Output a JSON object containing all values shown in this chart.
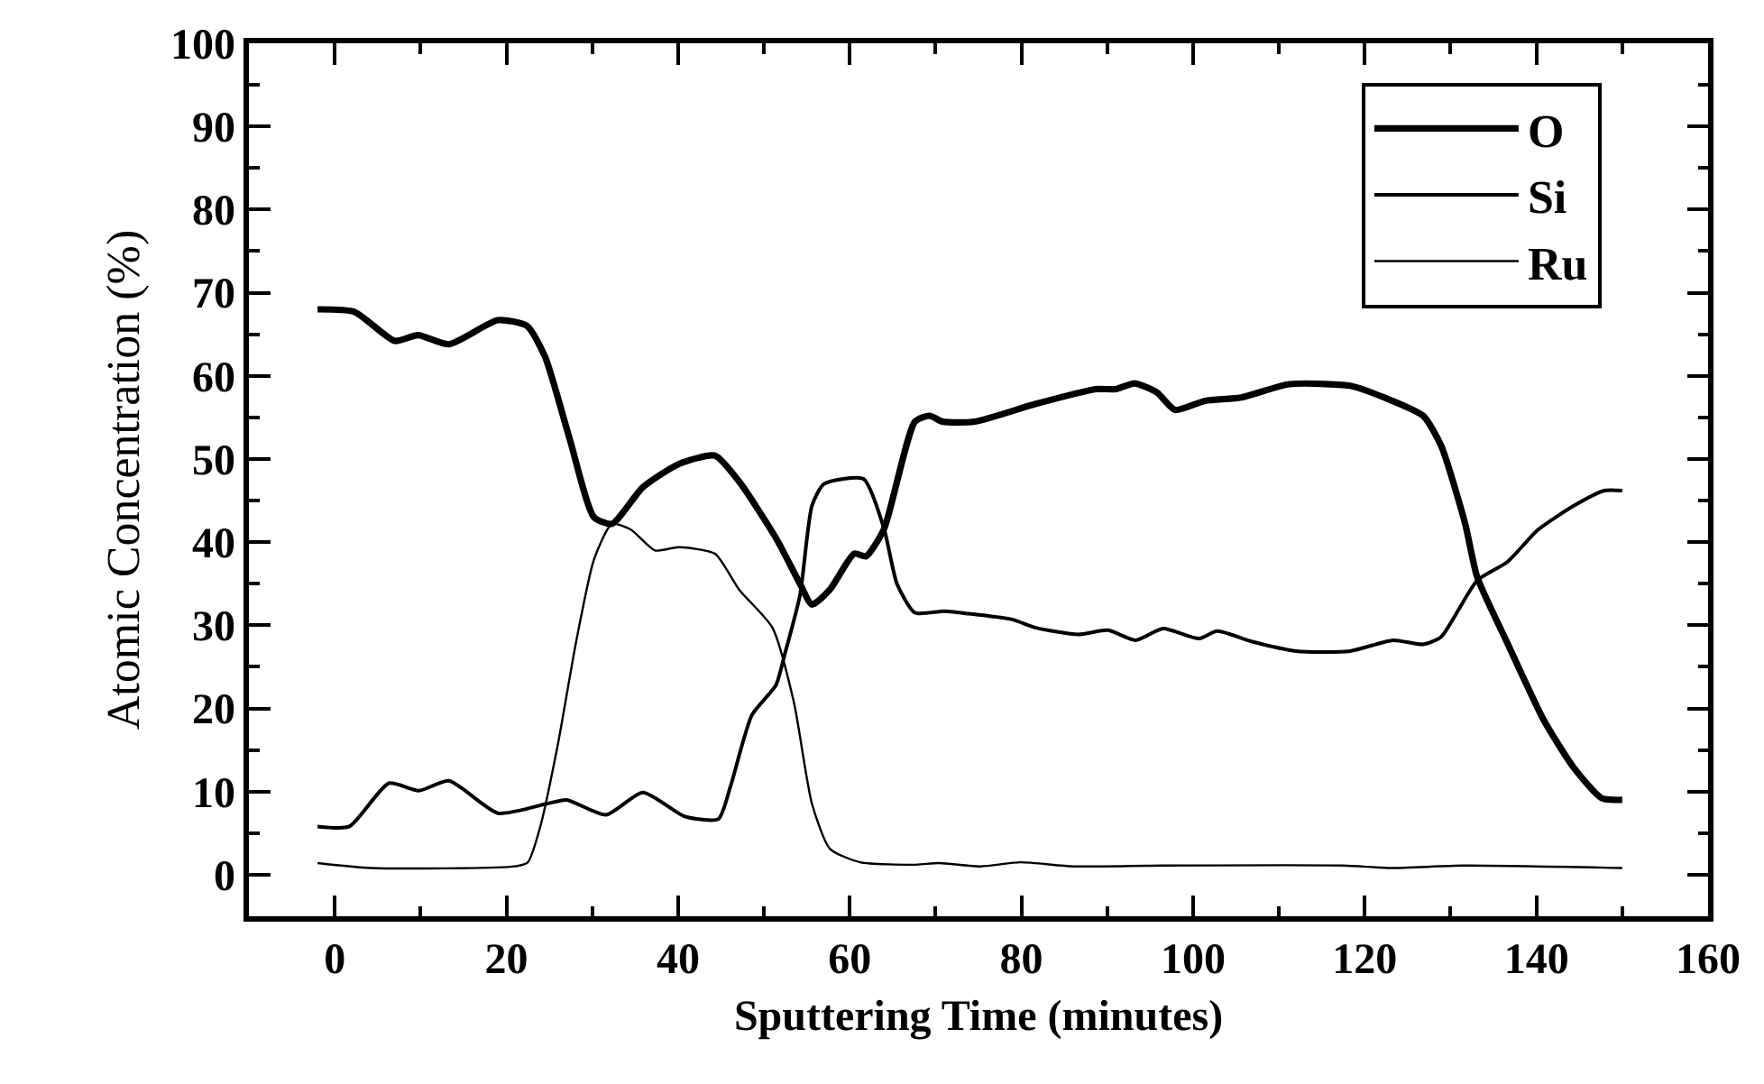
{
  "chart_data": {
    "type": "line",
    "xlabel": "Sputtering Time (minutes)",
    "ylabel": "Atomic Concentration (%)",
    "xlim": [
      -10,
      160
    ],
    "ylim": [
      -5,
      100
    ],
    "xticks": [
      {
        "value": -10,
        "label": null
      },
      0,
      {
        "value": 10,
        "label": null
      },
      20,
      {
        "value": 30,
        "label": null
      },
      40,
      {
        "value": 50,
        "label": null
      },
      60,
      {
        "value": 70,
        "label": null
      },
      80,
      {
        "value": 90,
        "label": null
      },
      100,
      {
        "value": 110,
        "label": null
      },
      120,
      {
        "value": 130,
        "label": null
      },
      140,
      {
        "value": 150,
        "label": null
      },
      160
    ],
    "yticks": [
      0,
      {
        "value": 5,
        "label": null
      },
      10,
      {
        "value": 15,
        "label": null
      },
      20,
      {
        "value": 25,
        "label": null
      },
      30,
      {
        "value": 35,
        "label": null
      },
      40,
      {
        "value": 45,
        "label": null
      },
      50,
      {
        "value": 55,
        "label": null
      },
      60,
      {
        "value": 65,
        "label": null
      },
      70,
      {
        "value": 75,
        "label": null
      },
      80,
      {
        "value": 85,
        "label": null
      },
      90,
      {
        "value": 95,
        "label": null
      },
      100
    ],
    "legend": "top right",
    "marker": "none",
    "line_style": "solid",
    "series": [
      {
        "name": "O",
        "color": "#000000",
        "x": [
          -2,
          2.3,
          7,
          9.7,
          13.3,
          19,
          22.4,
          24.5,
          27.4,
          30.2,
          32.3,
          35.9,
          40.1,
          44.3,
          47.1,
          51.4,
          54.2,
          55.6,
          57.7,
          60.5,
          61.9,
          64,
          67.6,
          69.3,
          70.8,
          74.6,
          81.6,
          88.7,
          91,
          93.2,
          95.8,
          97.9,
          101.4,
          105.6,
          111.2,
          118.3,
          122.5,
          126.8,
          128.9,
          131.7,
          133.1,
          136.6,
          140.9,
          144.4,
          147.6,
          150
        ],
        "values": [
          68,
          67.7,
          64.2,
          64.9,
          63.8,
          66.7,
          66,
          62.3,
          52.3,
          43,
          42.2,
          46.6,
          49.4,
          50.4,
          47.3,
          40.5,
          35,
          32.5,
          34.3,
          38.6,
          38.3,
          41.6,
          54.5,
          55.2,
          54.5,
          54.5,
          56.6,
          58.4,
          58.4,
          59.1,
          58,
          55.9,
          57,
          57.4,
          59,
          58.8,
          57.3,
          55.2,
          51.6,
          42.2,
          35.8,
          27.9,
          18.5,
          12.8,
          9.2,
          9
        ]
      },
      {
        "name": "Si",
        "color": "#000000",
        "x": [
          -2,
          1.7,
          6.3,
          9.8,
          13.3,
          19,
          24.6,
          27,
          31.6,
          35.9,
          40.8,
          44.7,
          46.1,
          48.6,
          51.4,
          52.4,
          54.2,
          55.6,
          57,
          61.6,
          64,
          65.5,
          67.6,
          71,
          74.6,
          78.9,
          81.7,
          86.6,
          90.1,
          93.3,
          96.5,
          100.7,
          102.8,
          107,
          112,
          118.3,
          123.3,
          126.8,
          128.9,
          133.1,
          136.6,
          140.2,
          144.4,
          147.9,
          150
        ],
        "values": [
          5.8,
          5.8,
          11,
          10.1,
          11.3,
          7.4,
          8.5,
          9,
          7.2,
          9.9,
          7,
          6.7,
          10.6,
          19.2,
          22.8,
          26.4,
          33.6,
          44.4,
          47,
          47.6,
          41.6,
          35,
          31.5,
          31.7,
          31.3,
          30.7,
          29.7,
          28.9,
          29.4,
          28.2,
          29.6,
          28.4,
          29.3,
          28,
          26.9,
          26.9,
          28.2,
          27.7,
          28.6,
          35.4,
          37.6,
          41.5,
          44.4,
          46.2,
          46.2
        ]
      },
      {
        "name": "Ru",
        "color": "#000000",
        "x": [
          -2,
          4.2,
          21,
          22.5,
          23.9,
          26,
          28.1,
          30.2,
          32.3,
          34.5,
          37.3,
          40.1,
          44.3,
          47.1,
          51,
          53.5,
          55.6,
          57.7,
          61.2,
          67.6,
          70.4,
          75.3,
          79.9,
          86,
          96.4,
          117.5,
          123,
          131.5,
          150
        ],
        "values": [
          1.4,
          0.8,
          1,
          1.5,
          5.6,
          15.7,
          27.9,
          37.9,
          42.2,
          41.5,
          39,
          39.4,
          38.6,
          34.3,
          29.7,
          20.7,
          8.5,
          3.1,
          1.5,
          1.2,
          1.4,
          1,
          1.5,
          1,
          1.1,
          1.1,
          0.8,
          1.1,
          0.8
        ]
      }
    ]
  }
}
